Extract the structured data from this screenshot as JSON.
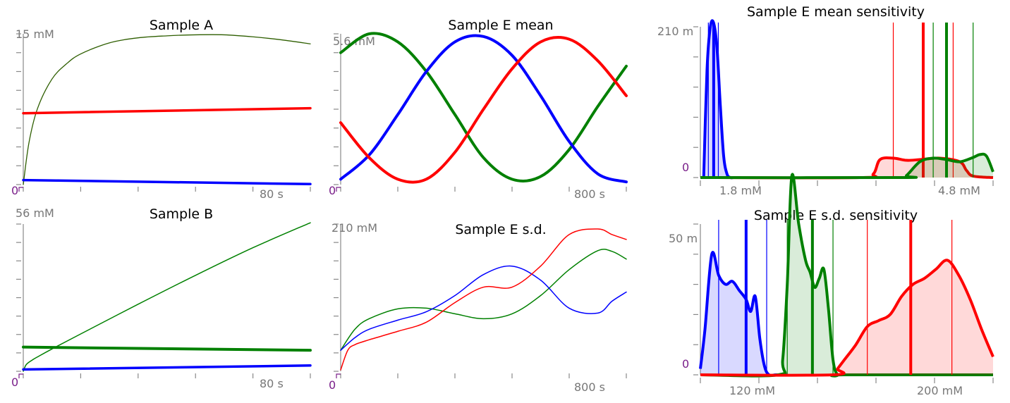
{
  "colors": {
    "red": "#ff0000",
    "green": "#008000",
    "blue": "#0000ff",
    "dark_green": "#2e5e00",
    "axis": "#888888",
    "zero": "#7a1f8a"
  },
  "chart_data": [
    {
      "id": "sample-a",
      "type": "line",
      "title": "Sample A",
      "y_top_label": "15 mM",
      "y_zero_label": "0",
      "x_label": "80 s",
      "xlim": [
        0,
        100
      ],
      "ylim": [
        0,
        15
      ],
      "series": [
        {
          "color": "dark_green",
          "width": 1.3,
          "x": [
            0,
            2,
            5,
            10,
            15,
            20,
            30,
            40,
            50,
            60,
            70,
            80,
            90,
            100
          ],
          "y": [
            0,
            4.2,
            7.6,
            10.5,
            12.0,
            13.0,
            14.1,
            14.6,
            14.8,
            14.9,
            14.9,
            14.7,
            14.4,
            14.0
          ]
        },
        {
          "color": "red",
          "width": 3.5,
          "x": [
            0,
            100
          ],
          "y": [
            7.1,
            7.6
          ]
        },
        {
          "color": "blue",
          "width": 3.5,
          "x": [
            0,
            100
          ],
          "y": [
            0.45,
            0.05
          ]
        }
      ]
    },
    {
      "id": "sample-b",
      "type": "line",
      "title": "Sample B",
      "y_top_label": "56 mM",
      "y_zero_label": "0",
      "x_label": "80 s",
      "xlim": [
        0,
        100
      ],
      "ylim": [
        0,
        56
      ],
      "series": [
        {
          "color": "green",
          "width": 1.5,
          "x": [
            0,
            1,
            3,
            5,
            10,
            20,
            40,
            60,
            80,
            100
          ],
          "y": [
            0,
            2.5,
            4.2,
            5.5,
            8.5,
            14.2,
            25.5,
            36.5,
            47.0,
            56.5
          ]
        },
        {
          "color": "green",
          "width": 4,
          "x": [
            0,
            100
          ],
          "y": [
            9.2,
            8.0
          ]
        },
        {
          "color": "blue",
          "width": 3.5,
          "x": [
            0,
            100
          ],
          "y": [
            0.7,
            2.2
          ]
        }
      ]
    },
    {
      "id": "sample-e-mean",
      "type": "line",
      "title": "Sample E mean",
      "y_top_label": "5.6 mM",
      "y_zero_label": "0",
      "x_label": "800 s",
      "xlim": [
        0,
        1000
      ],
      "ylim": [
        0,
        5.6
      ],
      "series": [
        {
          "color": "green",
          "width": 4,
          "x": [
            0,
            100,
            200,
            300,
            400,
            500,
            600,
            700,
            800,
            900,
            1000
          ],
          "y": [
            4.9,
            5.6,
            5.3,
            4.2,
            2.6,
            1.0,
            0.2,
            0.3,
            1.3,
            2.9,
            4.4
          ]
        },
        {
          "color": "blue",
          "width": 4,
          "x": [
            0,
            100,
            200,
            300,
            400,
            500,
            600,
            700,
            800,
            900,
            1000
          ],
          "y": [
            0.2,
            1.1,
            2.6,
            4.2,
            5.3,
            5.5,
            4.8,
            3.3,
            1.6,
            0.4,
            0.1
          ]
        },
        {
          "color": "red",
          "width": 4,
          "x": [
            0,
            100,
            200,
            300,
            400,
            500,
            600,
            700,
            800,
            900,
            1000
          ],
          "y": [
            2.3,
            1.0,
            0.2,
            0.2,
            1.2,
            2.8,
            4.3,
            5.3,
            5.4,
            4.6,
            3.3
          ]
        }
      ]
    },
    {
      "id": "sample-e-sd",
      "type": "line",
      "title": "Sample E s.d.",
      "y_top_label": "210 mM",
      "y_zero_label": "0",
      "x_label": "800 s",
      "xlim": [
        0,
        1000
      ],
      "ylim": [
        0,
        210
      ],
      "series": [
        {
          "color": "green",
          "width": 1.5,
          "x": [
            0,
            50,
            100,
            200,
            300,
            400,
            500,
            600,
            700,
            800,
            900,
            950,
            1000
          ],
          "y": [
            30,
            60,
            75,
            89,
            90,
            82,
            75,
            82,
            108,
            145,
            172,
            171,
            160
          ]
        },
        {
          "color": "blue",
          "width": 1.5,
          "x": [
            0,
            50,
            100,
            200,
            300,
            400,
            500,
            600,
            700,
            800,
            900,
            950,
            1000
          ],
          "y": [
            30,
            48,
            60,
            73,
            85,
            108,
            138,
            150,
            130,
            90,
            83,
            100,
            113
          ]
        },
        {
          "color": "red",
          "width": 1.5,
          "x": [
            0,
            25,
            50,
            100,
            200,
            300,
            400,
            500,
            600,
            700,
            800,
            900,
            950,
            1000
          ],
          "y": [
            2,
            30,
            38,
            45,
            57,
            70,
            98,
            120,
            120,
            150,
            195,
            203,
            195,
            188
          ]
        }
      ]
    },
    {
      "id": "sample-e-mean-sensitivity",
      "type": "area",
      "title": "Sample E mean sensitivity",
      "y_top_label": "210 m",
      "y_zero_label": "0",
      "tick_labels": [
        "1.8 mM",
        "4.8 mM"
      ],
      "xlim": [
        0.9,
        5.3
      ],
      "ylim": [
        0,
        210
      ],
      "series": [
        {
          "color": "blue",
          "x": [
            0.95,
            1.0,
            1.05,
            1.1,
            1.15,
            1.2,
            1.25,
            1.3,
            1.35,
            1.4,
            1.45,
            1.5
          ],
          "y": [
            0,
            150,
            210,
            215,
            180,
            100,
            30,
            5,
            0,
            0,
            0,
            0
          ],
          "vlines": [
            1.02,
            1.1,
            1.17
          ],
          "mean": 1.1
        },
        {
          "color": "red",
          "x": [
            0.9,
            3.3,
            3.5,
            3.6,
            3.8,
            4.0,
            4.2,
            4.5,
            4.8,
            4.9,
            5.0,
            5.3
          ],
          "y": [
            0,
            0,
            5,
            25,
            27,
            24,
            25,
            27,
            22,
            10,
            2,
            0
          ],
          "vlines": [
            3.8,
            4.25,
            4.7
          ],
          "mean": 4.25
        },
        {
          "color": "green",
          "x": [
            0.9,
            3.9,
            4.0,
            4.2,
            4.4,
            4.6,
            4.8,
            5.0,
            5.1,
            5.2,
            5.3
          ],
          "y": [
            0,
            0,
            3,
            22,
            27,
            25,
            22,
            28,
            32,
            30,
            8
          ],
          "vlines": [
            4.4,
            4.6,
            5.0
          ],
          "mean": 4.6
        }
      ]
    },
    {
      "id": "sample-e-sd-sensitivity",
      "type": "area",
      "title": "Sample E s.d. sensitivity",
      "y_top_label": "50 m",
      "y_zero_label": "0",
      "tick_labels": [
        "120 mM",
        "200 mM"
      ],
      "xlim": [
        102,
        230
      ],
      "ylim": [
        0,
        50
      ],
      "series": [
        {
          "color": "blue",
          "x": [
            102,
            104,
            107,
            110,
            113,
            116,
            119,
            122,
            124,
            126,
            128,
            130,
            132,
            135,
            140
          ],
          "y": [
            2,
            15,
            40,
            33,
            30,
            31,
            28,
            25,
            21,
            26,
            12,
            3,
            0,
            0,
            0
          ],
          "vlines": [
            110,
            122,
            131
          ],
          "mean": 122
        },
        {
          "color": "green",
          "x": [
            102,
            136,
            138,
            140,
            142,
            145,
            148,
            150,
            152,
            154,
            156,
            158,
            160,
            162,
            165,
            230
          ],
          "y": [
            0,
            0,
            5,
            30,
            66,
            50,
            38,
            34,
            29,
            32,
            35,
            22,
            5,
            0,
            0,
            0
          ],
          "vlines": [
            140,
            151,
            160
          ],
          "mean": 151
        },
        {
          "color": "red",
          "x": [
            102,
            160,
            162,
            165,
            170,
            175,
            180,
            185,
            190,
            195,
            200,
            205,
            210,
            215,
            220,
            225,
            230
          ],
          "y": [
            0,
            0,
            2,
            5,
            10,
            16,
            18,
            20,
            26,
            30,
            32,
            35,
            38,
            33,
            25,
            15,
            6
          ],
          "vlines": [
            175,
            194,
            212
          ],
          "mean": 194
        }
      ]
    }
  ]
}
